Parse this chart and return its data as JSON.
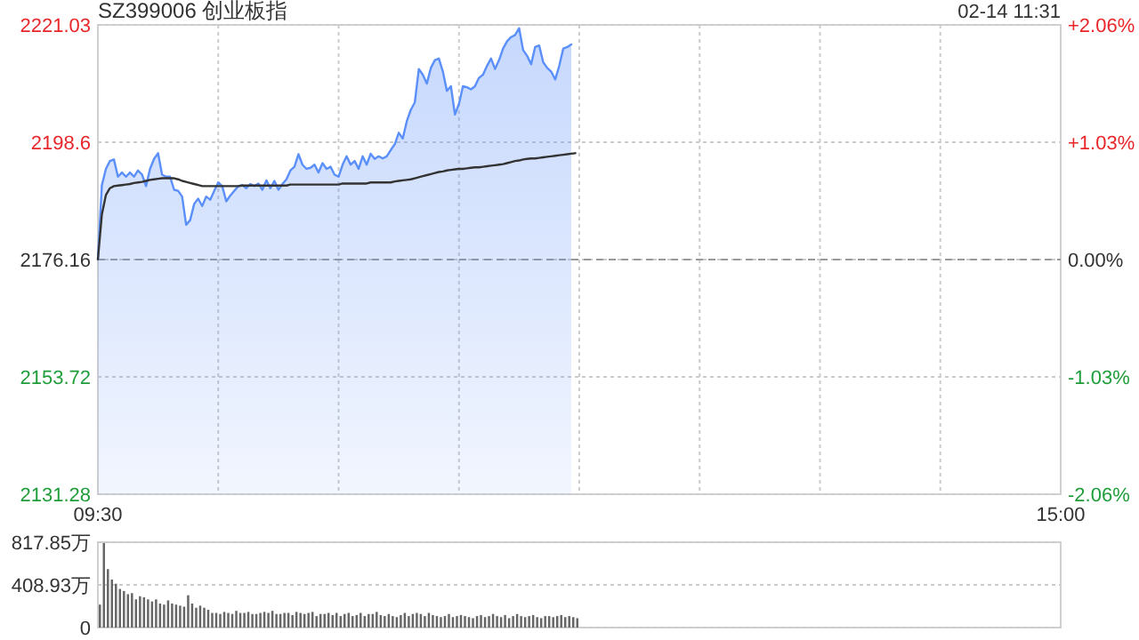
{
  "chart_data": [
    {
      "type": "line",
      "title": "SZ399006 创业板指",
      "annotations": [
        "02-14 11:31"
      ],
      "categories": [
        "09:30",
        null,
        null,
        null,
        null,
        null,
        null,
        null,
        null,
        null,
        null,
        null,
        null,
        null,
        null,
        null,
        null,
        null,
        null,
        null,
        null,
        null,
        null,
        null,
        null,
        null,
        null,
        null,
        null,
        null,
        null,
        null,
        null,
        null,
        null,
        null,
        null,
        null,
        null,
        null,
        null,
        null,
        null,
        null,
        null,
        null,
        null,
        null,
        null,
        null,
        null,
        null,
        null,
        null,
        null,
        null,
        null,
        null,
        null,
        null,
        null,
        null,
        null,
        null,
        null,
        null,
        null,
        null,
        null,
        null,
        null,
        null,
        null,
        null,
        null,
        null,
        null,
        null,
        null,
        null,
        null,
        null,
        null,
        null,
        null,
        null,
        null,
        null,
        null,
        null,
        null,
        null,
        null,
        null,
        null,
        null,
        null,
        null,
        null,
        null,
        null,
        null,
        null,
        null,
        null,
        null,
        null,
        null,
        null,
        null,
        null,
        null,
        null,
        null,
        null,
        null,
        null,
        null,
        null,
        null,
        null,
        null,
        null,
        null,
        null,
        null,
        null,
        null,
        null,
        null,
        null,
        null,
        null,
        null,
        null,
        null,
        null,
        null,
        null,
        null,
        null,
        null,
        null,
        null,
        null,
        null,
        null,
        null,
        null,
        null,
        null,
        null,
        null,
        null,
        null,
        null,
        null,
        null,
        null,
        null,
        null,
        null,
        null,
        null,
        null,
        null,
        null,
        null,
        null,
        null,
        null,
        null,
        null,
        null,
        null,
        null,
        null,
        null,
        null,
        null,
        null,
        null,
        null,
        null,
        null,
        null,
        null,
        null,
        null,
        null,
        null,
        null,
        null,
        null,
        null,
        null,
        null,
        null,
        null,
        null,
        null,
        null,
        null,
        null,
        null,
        null,
        null,
        null,
        null,
        null,
        null,
        null,
        null,
        null,
        null,
        null,
        null,
        null,
        null,
        null,
        null,
        null,
        null,
        null,
        null,
        null,
        null,
        null,
        null,
        null,
        null,
        null,
        null,
        null,
        null,
        null,
        null,
        null,
        null,
        null,
        "15:00"
      ],
      "ylim": [
        2131.28,
        2221.03
      ],
      "yticks": [
        2131.28,
        2153.72,
        2176.16,
        2198.6,
        2221.03
      ],
      "y2lim": [
        -2.06,
        2.06
      ],
      "y2ticks": [
        {
          "value": -2.06,
          "label": "-2.06%"
        },
        {
          "value": -1.03,
          "label": "-1.03%"
        },
        {
          "value": 0,
          "label": "0.00%"
        },
        {
          "value": 1.03,
          "label": "+1.03%"
        },
        {
          "value": 2.06,
          "label": "+2.06%"
        }
      ],
      "grid": true,
      "ref_lines": [
        {
          "axis": "y",
          "value": 2176.16,
          "line_style": "dashed",
          "color": "#999999"
        }
      ],
      "series": [
        {
          "type": "area",
          "color": "#5b8ff9",
          "values": [
            2176.2,
            2190.4,
            2193.5,
            2195.0,
            2195.3,
            2192.0,
            2192.8,
            2192.0,
            2192.8,
            2192.0,
            2193.2,
            2192.4,
            2190.2,
            2193.5,
            2195.4,
            2196.5,
            2192.4,
            2192.0,
            2192.0,
            2189.5,
            2189.3,
            2188.2,
            2182.8,
            2183.7,
            2186.8,
            2187.8,
            2186.4,
            2188.2,
            2187.6,
            2189.3,
            2190.9,
            2190.2,
            2187.3,
            2188.4,
            2189.3,
            2190.2,
            2190.4,
            2189.8,
            2190.6,
            2190.2,
            2190.7,
            2189.5,
            2191.3,
            2189.8,
            2191.2,
            2189.5,
            2190.6,
            2191.5,
            2193.2,
            2193.9,
            2196.3,
            2194.3,
            2193.5,
            2193.7,
            2194.3,
            2192.8,
            2194.6,
            2193.5,
            2193.9,
            2192.4,
            2192.0,
            2194.3,
            2195.9,
            2194.3,
            2195.0,
            2193.5,
            2195.9,
            2194.3,
            2196.4,
            2195.4,
            2195.9,
            2195.5,
            2195.9,
            2197.1,
            2198.2,
            2200.4,
            2199.3,
            2202.6,
            2204.8,
            2206.2,
            2212.6,
            2211.5,
            2209.8,
            2212.8,
            2214.3,
            2214.6,
            2212.1,
            2208.4,
            2209.3,
            2203.9,
            2205.9,
            2209.3,
            2209.1,
            2208.7,
            2209.3,
            2210.9,
            2211.5,
            2213.2,
            2214.6,
            2212.6,
            2214.3,
            2216.5,
            2217.9,
            2218.7,
            2219.1,
            2220.4,
            2216.2,
            2215.1,
            2213.5,
            2216.8,
            2217.1,
            2213.9,
            2212.8,
            2212.1,
            2210.6,
            2213.2,
            2216.5,
            2216.8,
            2217.3,
            null,
            null,
            null,
            null,
            null,
            null,
            null,
            null,
            null,
            null,
            null,
            null,
            null,
            null,
            null,
            null,
            null,
            null,
            null,
            null,
            null,
            null,
            null,
            null,
            null,
            null,
            null,
            null,
            null,
            null,
            null,
            null,
            null,
            null,
            null,
            null,
            null,
            null,
            null,
            null,
            null,
            null,
            null,
            null,
            null,
            null,
            null,
            null,
            null,
            null,
            null,
            null,
            null,
            null,
            null,
            null,
            null,
            null,
            null,
            null,
            null,
            null,
            null,
            null,
            null,
            null,
            null,
            null,
            null,
            null,
            null,
            null,
            null,
            null,
            null,
            null,
            null,
            null,
            null,
            null,
            null,
            null,
            null,
            null,
            null,
            null,
            null,
            null,
            null,
            null,
            null,
            null,
            null,
            null,
            null,
            null,
            null,
            null,
            null,
            null,
            null,
            null,
            null,
            null,
            null,
            null,
            null,
            null,
            null,
            null,
            null,
            null,
            null,
            null,
            null,
            null,
            null,
            null,
            null,
            null,
            null,
            null
          ]
        },
        {
          "color": "#333333",
          "values": [
            2176.2,
            2184.8,
            2188.5,
            2189.8,
            2190.2,
            2190.3,
            2190.4,
            2190.5,
            2190.6,
            2190.8,
            2190.9,
            2191.0,
            2191.2,
            2191.4,
            2191.5,
            2191.6,
            2191.7,
            2191.7,
            2191.7,
            2191.7,
            2191.5,
            2191.2,
            2191.0,
            2190.8,
            2190.6,
            2190.4,
            2190.2,
            2190.2,
            2190.2,
            2190.2,
            2190.2,
            2190.2,
            2190.2,
            2190.2,
            2190.2,
            2190.2,
            2190.3,
            2190.3,
            2190.3,
            2190.3,
            2190.3,
            2190.3,
            2190.3,
            2190.3,
            2190.3,
            2190.3,
            2190.3,
            2190.3,
            2190.5,
            2190.5,
            2190.5,
            2190.5,
            2190.5,
            2190.5,
            2190.5,
            2190.5,
            2190.5,
            2190.5,
            2190.5,
            2190.5,
            2190.5,
            2190.7,
            2190.7,
            2190.7,
            2190.7,
            2190.7,
            2190.7,
            2190.7,
            2190.9,
            2190.9,
            2190.9,
            2190.9,
            2190.9,
            2190.9,
            2191.1,
            2191.2,
            2191.3,
            2191.4,
            2191.5,
            2191.7,
            2191.9,
            2192.1,
            2192.3,
            2192.5,
            2192.7,
            2192.9,
            2193.0,
            2193.2,
            2193.3,
            2193.4,
            2193.5,
            2193.5,
            2193.6,
            2193.7,
            2193.8,
            2193.8,
            2193.9,
            2194.0,
            2194.1,
            2194.2,
            2194.3,
            2194.4,
            2194.6,
            2194.8,
            2195.0,
            2195.1,
            2195.3,
            2195.4,
            2195.5,
            2195.5,
            2195.6,
            2195.7,
            2195.8,
            2195.9,
            2196.0,
            2196.1,
            2196.2,
            2196.3,
            2196.4,
            2196.5,
            null,
            null,
            null,
            null,
            null,
            null,
            null,
            null,
            null,
            null,
            null,
            null,
            null,
            null,
            null,
            null,
            null,
            null,
            null,
            null,
            null,
            null,
            null,
            null,
            null,
            null,
            null,
            null,
            null,
            null,
            null,
            null,
            null,
            null,
            null,
            null,
            null,
            null,
            null,
            null,
            null,
            null,
            null,
            null,
            null,
            null,
            null,
            null,
            null,
            null,
            null,
            null,
            null,
            null,
            null,
            null,
            null,
            null,
            null,
            null,
            null,
            null,
            null,
            null,
            null,
            null,
            null,
            null,
            null,
            null,
            null,
            null,
            null,
            null,
            null,
            null,
            null,
            null,
            null,
            null,
            null,
            null,
            null,
            null,
            null,
            null,
            null,
            null,
            null,
            null,
            null,
            null,
            null,
            null,
            null,
            null,
            null,
            null,
            null,
            null,
            null,
            null,
            null,
            null,
            null,
            null,
            null,
            null,
            null,
            null,
            null,
            null,
            null,
            null,
            null,
            null,
            null,
            null,
            null,
            null,
            null
          ]
        }
      ]
    },
    {
      "type": "bar",
      "color": "#666666",
      "tick_labels": "y",
      "grid": "y",
      "categories": [
        null,
        null,
        null,
        null,
        null,
        null,
        null,
        null,
        null,
        null,
        null,
        null,
        null,
        null,
        null,
        null,
        null,
        null,
        null,
        null,
        null,
        null,
        null,
        null,
        null,
        null,
        null,
        null,
        null,
        null,
        null,
        null,
        null,
        null,
        null,
        null,
        null,
        null,
        null,
        null,
        null,
        null,
        null,
        null,
        null,
        null,
        null,
        null,
        null,
        null,
        null,
        null,
        null,
        null,
        null,
        null,
        null,
        null,
        null,
        null,
        null,
        null,
        null,
        null,
        null,
        null,
        null,
        null,
        null,
        null,
        null,
        null,
        null,
        null,
        null,
        null,
        null,
        null,
        null,
        null,
        null,
        null,
        null,
        null,
        null,
        null,
        null,
        null,
        null,
        null,
        null,
        null,
        null,
        null,
        null,
        null,
        null,
        null,
        null,
        null,
        null,
        null,
        null,
        null,
        null,
        null,
        null,
        null,
        null,
        null,
        null,
        null,
        null,
        null,
        null,
        null,
        null,
        null,
        null,
        null,
        null,
        null,
        null,
        null,
        null,
        null,
        null,
        null,
        null,
        null,
        null,
        null,
        null,
        null,
        null,
        null,
        null,
        null,
        null,
        null,
        null,
        null,
        null,
        null,
        null,
        null,
        null,
        null,
        null,
        null,
        null,
        null,
        null,
        null,
        null,
        null,
        null,
        null,
        null,
        null,
        null,
        null,
        null,
        null,
        null,
        null,
        null,
        null,
        null,
        null,
        null,
        null,
        null,
        null,
        null,
        null,
        null,
        null,
        null,
        null,
        null,
        null,
        null,
        null,
        null,
        null,
        null,
        null,
        null,
        null,
        null,
        null,
        null,
        null,
        null,
        null,
        null,
        null,
        null,
        null,
        null,
        null,
        null,
        null,
        null,
        null,
        null,
        null,
        null,
        null,
        null,
        null,
        null,
        null,
        null,
        null,
        null,
        null,
        null,
        null,
        null,
        null,
        null,
        null,
        null,
        null,
        null,
        null,
        null,
        null,
        null,
        null,
        null,
        null,
        null,
        null,
        null,
        null,
        null,
        null,
        null
      ],
      "ylim": [
        0,
        817.85
      ],
      "yticks": [
        {
          "value": 0,
          "label": "0"
        },
        {
          "value": 408.93,
          "label": "408.93万"
        },
        {
          "value": 817.85,
          "label": "817.85万"
        }
      ],
      "values": [
        220,
        810,
        560,
        460,
        420,
        370,
        350,
        320,
        330,
        270,
        300,
        290,
        270,
        250,
        270,
        230,
        220,
        260,
        230,
        220,
        210,
        200,
        310,
        230,
        190,
        210,
        190,
        170,
        140,
        140,
        130,
        150,
        140,
        130,
        160,
        140,
        140,
        150,
        130,
        130,
        140,
        150,
        140,
        160,
        130,
        130,
        140,
        140,
        120,
        150,
        140,
        130,
        140,
        150,
        110,
        130,
        130,
        140,
        120,
        140,
        110,
        130,
        140,
        110,
        120,
        140,
        110,
        130,
        130,
        150,
        120,
        110,
        130,
        110,
        100,
        120,
        140,
        110,
        130,
        140,
        130,
        110,
        140,
        120,
        110,
        100,
        110,
        130,
        100,
        110,
        120,
        110,
        100,
        90,
        110,
        120,
        100,
        110,
        130,
        110,
        100,
        120,
        90,
        110,
        130,
        110,
        100,
        110,
        120,
        100,
        90,
        110,
        110,
        100,
        110,
        120,
        100,
        110,
        100,
        90,
        null,
        null,
        null,
        null,
        null,
        null,
        null,
        null,
        null,
        null,
        null,
        null,
        null,
        null,
        null,
        null,
        null,
        null,
        null,
        null,
        null,
        null,
        null,
        null,
        null,
        null,
        null,
        null,
        null,
        null,
        null,
        null,
        null,
        null,
        null,
        null,
        null,
        null,
        null,
        null,
        null,
        null,
        null,
        null,
        null,
        null,
        null,
        null,
        null,
        null,
        null,
        null,
        null,
        null,
        null,
        null,
        null,
        null,
        null,
        null,
        null,
        null,
        null,
        null,
        null,
        null,
        null,
        null,
        null,
        null,
        null,
        null,
        null,
        null,
        null,
        null,
        null,
        null,
        null,
        null,
        null,
        null,
        null,
        null,
        null,
        null,
        null,
        null,
        null,
        null,
        null,
        null,
        null,
        null,
        null,
        null,
        null,
        null,
        null,
        null,
        null,
        null,
        null,
        null,
        null,
        null,
        null,
        null,
        null,
        null,
        null,
        null,
        null,
        null,
        null,
        null,
        null,
        null,
        null,
        null,
        null
      ]
    }
  ]
}
